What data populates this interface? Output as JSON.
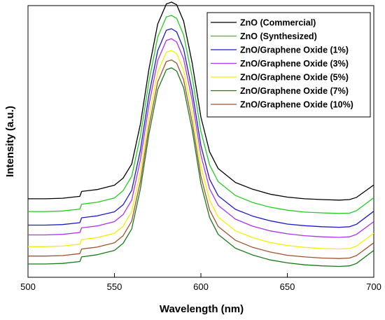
{
  "chart_data": {
    "type": "line",
    "xlabel": "Wavelength (nm)",
    "ylabel": "Intensity (a.u.)",
    "xlim": [
      500,
      700
    ],
    "ylim": [
      0,
      100
    ],
    "x_ticks": [
      500,
      550,
      600,
      650,
      700
    ],
    "y_ticks_shown": false,
    "grid": false,
    "legend_position": "top-right",
    "x": [
      500,
      510,
      520,
      530,
      531,
      540,
      550,
      555,
      560,
      565,
      570,
      575,
      580,
      583,
      586,
      590,
      595,
      600,
      605,
      610,
      620,
      630,
      640,
      650,
      660,
      670,
      680,
      686,
      690,
      700
    ],
    "series": [
      {
        "name": "ZnO (Commercial)",
        "color": "#000000",
        "values": [
          28.9,
          28.9,
          29.1,
          29.8,
          31.6,
          32.3,
          33.9,
          36.5,
          41.7,
          56.4,
          76.8,
          93.2,
          100.6,
          101.3,
          100.3,
          94.3,
          78.8,
          59.0,
          46.2,
          40.0,
          34.9,
          32.4,
          30.6,
          29.5,
          28.9,
          28.6,
          28.4,
          28.6,
          29.4,
          34.0
        ]
      },
      {
        "name": "ZnO (Synthesized)",
        "color": "#22cc22",
        "values": [
          24.2,
          24.2,
          24.4,
          25.1,
          26.9,
          27.6,
          29.2,
          31.9,
          37.2,
          52.0,
          72.3,
          88.4,
          95.8,
          96.4,
          95.3,
          89.2,
          73.6,
          53.7,
          41.4,
          35.2,
          30.1,
          27.5,
          25.8,
          24.7,
          24.0,
          23.7,
          23.5,
          23.6,
          24.5,
          29.3
        ]
      },
      {
        "name": "ZnO/Graphene Oxide (1%)",
        "color": "#1a1acc",
        "values": [
          19.2,
          19.2,
          19.4,
          20.1,
          21.9,
          22.6,
          24.1,
          26.7,
          32.0,
          46.8,
          67.3,
          83.4,
          90.9,
          91.5,
          90.3,
          84.1,
          68.4,
          48.5,
          36.1,
          30.0,
          25.0,
          22.5,
          20.8,
          19.6,
          19.0,
          18.6,
          18.4,
          18.6,
          19.5,
          24.3
        ]
      },
      {
        "name": "ZnO/Graphene Oxide (3%)",
        "color": "#aa33ee",
        "values": [
          15.6,
          15.6,
          15.8,
          16.5,
          18.2,
          18.9,
          20.5,
          23.1,
          28.4,
          43.3,
          63.6,
          79.8,
          87.2,
          87.8,
          86.6,
          80.5,
          65.0,
          45.0,
          32.6,
          26.5,
          21.4,
          18.8,
          17.1,
          16.0,
          15.3,
          14.9,
          14.7,
          14.9,
          15.8,
          20.5
        ]
      },
      {
        "name": "ZnO/Graphene Oxide (5%)",
        "color": "#f0f000",
        "values": [
          11.3,
          11.3,
          11.5,
          12.2,
          13.9,
          14.6,
          16.2,
          18.8,
          24.2,
          39.0,
          59.3,
          75.5,
          82.8,
          83.5,
          82.3,
          76.2,
          60.6,
          40.8,
          28.4,
          22.2,
          17.1,
          14.6,
          12.8,
          11.7,
          11.0,
          10.6,
          10.4,
          10.6,
          11.5,
          16.2
        ]
      },
      {
        "name": "ZnO/Graphene Oxide (7%)",
        "color": "#1a7a1a",
        "values": [
          4.9,
          4.9,
          5.1,
          5.8,
          7.5,
          8.3,
          9.9,
          12.5,
          17.8,
          32.6,
          52.9,
          69.1,
          76.4,
          77.1,
          75.9,
          69.8,
          54.2,
          34.4,
          22.0,
          15.8,
          10.7,
          8.2,
          6.4,
          5.3,
          4.6,
          4.2,
          4.0,
          4.2,
          5.1,
          9.9
        ]
      },
      {
        "name": "ZnO/Graphene Oxide (10%)",
        "color": "#a0522d",
        "values": [
          7.8,
          7.8,
          8.0,
          8.7,
          10.4,
          11.1,
          12.7,
          15.3,
          20.7,
          35.4,
          55.7,
          71.9,
          79.4,
          80.0,
          78.8,
          72.7,
          57.0,
          37.2,
          24.8,
          18.7,
          13.6,
          11.0,
          9.3,
          8.1,
          7.5,
          7.1,
          6.9,
          7.1,
          8.0,
          12.7
        ]
      }
    ]
  }
}
